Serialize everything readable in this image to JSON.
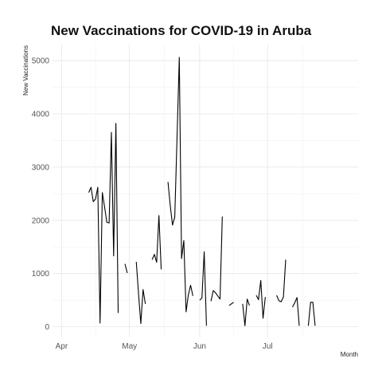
{
  "chart_data": {
    "type": "line",
    "title": "New Vaccinations for COVID-19 in Aruba",
    "xlabel": "Month",
    "ylabel": "New Vaccinations",
    "x_ticks": [
      {
        "date": "2021-04-01",
        "label": "Apr"
      },
      {
        "date": "2021-05-01",
        "label": "May"
      },
      {
        "date": "2021-06-01",
        "label": "Jun"
      },
      {
        "date": "2021-07-01",
        "label": "Jul"
      }
    ],
    "y_ticks": [
      0,
      1000,
      2000,
      3000,
      4000,
      5000
    ],
    "xlim": [
      "2021-03-28",
      "2021-08-10"
    ],
    "ylim": [
      -200,
      5300
    ],
    "grid": true,
    "legend": "none",
    "series": [
      {
        "color": "#000000",
        "segments": [
          [
            [
              "2021-04-13",
              2520
            ],
            [
              "2021-04-14",
              2620
            ],
            [
              "2021-04-15",
              2350
            ],
            [
              "2021-04-16",
              2400
            ],
            [
              "2021-04-17",
              2620
            ],
            [
              "2021-04-18",
              70
            ],
            [
              "2021-04-19",
              2520
            ],
            [
              "2021-04-20",
              2250
            ],
            [
              "2021-04-21",
              1960
            ],
            [
              "2021-04-22",
              1950
            ],
            [
              "2021-04-23",
              3650
            ],
            [
              "2021-04-24",
              1330
            ],
            [
              "2021-04-25",
              3820
            ],
            [
              "2021-04-26",
              260
            ]
          ],
          [
            [
              "2021-04-29",
              1180
            ],
            [
              "2021-04-30",
              1010
            ]
          ],
          [
            [
              "2021-05-04",
              1220
            ],
            [
              "2021-05-05",
              620
            ],
            [
              "2021-05-06",
              60
            ],
            [
              "2021-05-07",
              700
            ],
            [
              "2021-05-08",
              430
            ]
          ],
          [
            [
              "2021-05-11",
              1260
            ],
            [
              "2021-05-12",
              1360
            ],
            [
              "2021-05-13",
              1210
            ],
            [
              "2021-05-14",
              2090
            ],
            [
              "2021-05-15",
              1080
            ]
          ],
          [
            [
              "2021-05-18",
              2720
            ],
            [
              "2021-05-19",
              2280
            ],
            [
              "2021-05-20",
              1910
            ],
            [
              "2021-05-21",
              2060
            ],
            [
              "2021-05-22",
              3550
            ],
            [
              "2021-05-23",
              5060
            ],
            [
              "2021-05-24",
              1280
            ],
            [
              "2021-05-25",
              1620
            ],
            [
              "2021-05-26",
              280
            ],
            [
              "2021-05-27",
              600
            ],
            [
              "2021-05-28",
              780
            ],
            [
              "2021-05-29",
              580
            ]
          ],
          [
            [
              "2021-06-01",
              500
            ],
            [
              "2021-06-02",
              540
            ],
            [
              "2021-06-03",
              1410
            ],
            [
              "2021-06-04",
              20
            ]
          ],
          [
            [
              "2021-06-06",
              480
            ],
            [
              "2021-06-07",
              680
            ],
            [
              "2021-06-08",
              640
            ],
            [
              "2021-06-09",
              580
            ],
            [
              "2021-06-10",
              520
            ],
            [
              "2021-06-11",
              2070
            ]
          ],
          [
            [
              "2021-06-14",
              400
            ],
            [
              "2021-06-15",
              430
            ],
            [
              "2021-06-16",
              460
            ]
          ],
          [
            [
              "2021-06-20",
              430
            ],
            [
              "2021-06-21",
              20
            ],
            [
              "2021-06-22",
              520
            ],
            [
              "2021-06-23",
              400
            ]
          ],
          [
            [
              "2021-06-26",
              590
            ],
            [
              "2021-06-27",
              510
            ],
            [
              "2021-06-28",
              870
            ],
            [
              "2021-06-29",
              160
            ],
            [
              "2021-06-30",
              560
            ]
          ],
          [
            [
              "2021-07-05",
              590
            ],
            [
              "2021-07-06",
              490
            ],
            [
              "2021-07-07",
              470
            ],
            [
              "2021-07-08",
              560
            ],
            [
              "2021-07-09",
              1260
            ]
          ],
          [
            [
              "2021-07-12",
              370
            ],
            [
              "2021-07-13",
              450
            ],
            [
              "2021-07-14",
              550
            ],
            [
              "2021-07-15",
              20
            ]
          ],
          [
            [
              "2021-07-19",
              20
            ],
            [
              "2021-07-20",
              460
            ],
            [
              "2021-07-21",
              460
            ],
            [
              "2021-07-22",
              20
            ]
          ]
        ]
      }
    ]
  }
}
